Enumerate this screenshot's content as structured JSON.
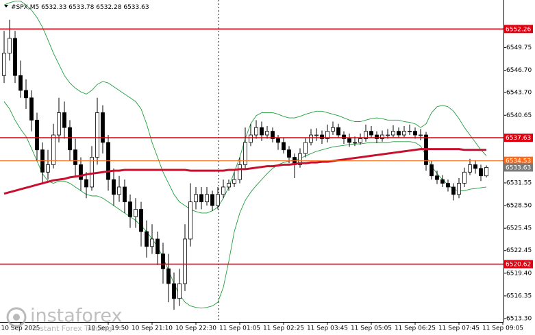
{
  "header": {
    "symbol": "#SPX,M5",
    "ohlc": [
      6532.33,
      6533.78,
      6532.28,
      6533.63
    ]
  },
  "watermark": {
    "brand": "instaforex",
    "tagline": "Instant Forex Trading"
  },
  "chart_data": {
    "type": "candlestick",
    "ylim": [
      6512.84,
      6556.16
    ],
    "yticks": [
      6549.75,
      {
        "value": 6546.7,
        "label": "6546.70"
      },
      {
        "value": 6543.7,
        "label": "6543.70"
      },
      6540.65,
      6531.55,
      {
        "value": 6528.5,
        "label": "6528.50"
      },
      6525.45,
      6522.45,
      {
        "value": 6519.4,
        "label": "6519.40"
      },
      6516.35,
      {
        "value": 6513.3,
        "label": "6513.30"
      }
    ],
    "up_color": "#ffffff",
    "down_color": "#000000",
    "levels": [
      {
        "value": 6552.26,
        "color": "#e00010"
      },
      {
        "value": 6537.63,
        "color": "#e00010"
      },
      {
        "value": 6534.53,
        "color": "#ff6a1a"
      },
      {
        "value": 6520.62,
        "color": "#e00010"
      }
    ],
    "price": {
      "value": 6533.63,
      "color": "#7a7a7a"
    },
    "categories": [
      null,
      null,
      null,
      "10 Sep 2025",
      null,
      null,
      null,
      null,
      null,
      null,
      null,
      null,
      null,
      null,
      null,
      null,
      null,
      null,
      null,
      "10 Sep 19:50",
      null,
      null,
      null,
      null,
      null,
      null,
      null,
      "10 Sep 21:10",
      null,
      null,
      null,
      null,
      null,
      null,
      null,
      "10 Sep 22:30",
      null,
      null,
      null,
      null,
      null,
      null,
      null,
      "11 Sep 01:05",
      null,
      null,
      null,
      null,
      null,
      null,
      null,
      "11 Sep 02:25",
      null,
      null,
      null,
      null,
      null,
      null,
      null,
      "11 Sep 03:45",
      null,
      null,
      null,
      null,
      null,
      null,
      null,
      "11 Sep 05:05",
      null,
      null,
      null,
      null,
      null,
      null,
      null,
      "11 Sep 06:25",
      null,
      null,
      null,
      null,
      null,
      null,
      null,
      "11 Sep 07:45",
      null,
      null,
      null,
      null,
      null,
      null,
      null,
      "11 Sep 09:05"
    ],
    "open": [
      6546,
      6549,
      6551,
      6546,
      6544,
      6543,
      6540,
      6536,
      6533,
      6534,
      6538,
      6541,
      6539,
      6536,
      6534,
      6532,
      6531,
      6535,
      6541,
      6537,
      6532,
      6530,
      6531,
      6529,
      6527,
      6528,
      6525,
      6523,
      6524,
      6522,
      6520,
      6518,
      6516,
      6518,
      6524,
      6529,
      6530,
      6529,
      6530,
      6528.5,
      6530,
      6531,
      6531.5,
      6532,
      6534,
      6537,
      6538,
      6539,
      6538,
      6538.5,
      6537.5,
      6537,
      6536,
      6535,
      6534,
      6535.5,
      6537,
      6538,
      6538,
      6537.5,
      6538.5,
      6539,
      6538,
      6537.5,
      6537,
      6537,
      6537.5,
      6538.5,
      6538,
      6537.5,
      6538,
      6538,
      6538.5,
      6538,
      6538.5,
      6538.5,
      6538,
      6538,
      6534,
      6532.5,
      6532,
      6531.5,
      6531,
      6530,
      6531.5,
      6533,
      6534,
      6533.5,
      6532.5,
      null,
      null,
      null
    ],
    "high": [
      6552,
      6553.5,
      6552,
      6548,
      6545.5,
      6544,
      6541,
      6537,
      6536,
      6539.5,
      6543,
      6542.5,
      6540,
      6537.5,
      6535,
      6533,
      6536.5,
      6543,
      6542,
      6538,
      6533.5,
      6532.5,
      6532,
      6530,
      6529.5,
      6529,
      6526.5,
      6526,
      6525,
      6523.5,
      6522,
      6519.5,
      6520,
      6526,
      6531.5,
      6531,
      6531,
      6531,
      6530.5,
      6531,
      6532,
      6532,
      6533,
      6535,
      6539,
      6539.5,
      6540,
      6539.8,
      6539.2,
      6539,
      6538,
      6537.6,
      6536.5,
      6535.5,
      6536.2,
      6537.6,
      6538.8,
      6538.9,
      6538.6,
      6539.4,
      6539.8,
      6539.5,
      6538.5,
      6538.2,
      6537.8,
      6538.2,
      6539.4,
      6539.2,
      6538.5,
      6538.6,
      6538.8,
      6539.3,
      6539,
      6539.2,
      6539.4,
      6539,
      6538.8,
      6538.4,
      6534.5,
      6533.2,
      6532.6,
      6532,
      6531.5,
      6532.2,
      6533.6,
      6534.8,
      6534.6,
      6534,
      6533.9,
      null,
      null,
      null
    ],
    "low": [
      6545,
      6548,
      6545,
      6543,
      6541.5,
      6538.5,
      6534.5,
      6531.5,
      6532,
      6533.5,
      6537,
      6537.5,
      6534.5,
      6532.5,
      6530.5,
      6529.5,
      6530.5,
      6534,
      6535.5,
      6530.5,
      6528.5,
      6529,
      6527.5,
      6525.5,
      6525.5,
      6523,
      6521.5,
      6522,
      6520.5,
      6518,
      6515.5,
      6514.5,
      6515,
      6517,
      6523,
      6528,
      6528,
      6528.5,
      6527.8,
      6528,
      6529.5,
      6530.5,
      6531,
      6531.5,
      6533.5,
      6536.5,
      6537.5,
      6537.2,
      6537.5,
      6537,
      6536,
      6535.5,
      6534.2,
      6532.2,
      6533.6,
      6535,
      6536.6,
      6537.2,
      6536.8,
      6537,
      6538,
      6537.6,
      6536.8,
      6536.4,
      6536.5,
      6536.7,
      6537.1,
      6537.6,
      6536.9,
      6537.1,
      6537.5,
      6537.7,
      6537.6,
      6537.7,
      6538,
      6537.5,
      6537.3,
      6533.2,
      6532,
      6531.4,
      6531,
      6530.4,
      6529.2,
      6529.5,
      6531,
      6532.6,
      6532.8,
      6531.8,
      6532.28,
      null,
      null,
      null
    ],
    "close": [
      6549,
      6551,
      6546,
      6544,
      6543,
      6540,
      6536,
      6533,
      6534,
      6538,
      6541,
      6539,
      6536,
      6534,
      6532,
      6531,
      6535,
      6541,
      6537,
      6532,
      6530,
      6531,
      6529,
      6527,
      6528,
      6525,
      6523,
      6524,
      6522,
      6520,
      6518,
      6516,
      6518,
      6524,
      6529,
      6530,
      6529,
      6530,
      6528.5,
      6530,
      6531,
      6531.5,
      6532,
      6534,
      6537,
      6538,
      6539,
      6538,
      6538.5,
      6537.5,
      6537,
      6536,
      6535,
      6534,
      6535.5,
      6537,
      6538,
      6538,
      6537.5,
      6538.5,
      6539,
      6538,
      6537.5,
      6537,
      6537,
      6537.5,
      6538.5,
      6538,
      6537.5,
      6538,
      6538,
      6538.5,
      6538,
      6538.5,
      6538.5,
      6538,
      6538,
      6534,
      6532.5,
      6532,
      6531.5,
      6531,
      6530,
      6531.5,
      6533,
      6534,
      6533.5,
      6532.5,
      6533.63,
      null,
      null,
      null
    ],
    "bollinger_upper": {
      "color": "#1f9e3a",
      "values": [
        6555.5,
        6555.8,
        6556,
        6556,
        6555.5,
        6554.8,
        6553.8,
        6552.5,
        6550.8,
        6549,
        6547.5,
        6546,
        6545,
        6544.3,
        6543.8,
        6543.5,
        6544,
        6544.8,
        6545.2,
        6545,
        6544.5,
        6544,
        6543.5,
        6543,
        6542.5,
        6541.5,
        6539.5,
        6537,
        6535,
        6533,
        6531.5,
        6530,
        6529,
        6528.5,
        6528,
        6527.7,
        6527.5,
        6527.5,
        6527.8,
        6528.3,
        6529.5,
        6531,
        6533,
        6535,
        6537.5,
        6539.5,
        6540.6,
        6541,
        6541,
        6541,
        6540.8,
        6540.5,
        6540.3,
        6540.3,
        6540.5,
        6540.8,
        6541,
        6541.2,
        6541.2,
        6541,
        6540.8,
        6540.6,
        6540.3,
        6540,
        6539.8,
        6539.8,
        6540,
        6540.2,
        6540.3,
        6540.2,
        6540,
        6540,
        6540,
        6539.8,
        6539.7,
        6539.5,
        6539,
        6539.5,
        6541,
        6541.8,
        6542,
        6541.8,
        6541.2,
        6540.2,
        6539,
        6538,
        6537,
        6536,
        6535.2,
        null,
        null,
        null
      ]
    },
    "bollinger_lower": {
      "color": "#1f9e3a",
      "values": [
        6542.5,
        6541.5,
        6540,
        6538.8,
        6537.8,
        6536.2,
        6534.5,
        6532.8,
        6531.8,
        6531.5,
        6531.8,
        6531.8,
        6531.5,
        6531,
        6530.5,
        6530,
        6529.8,
        6529.8,
        6529.5,
        6529,
        6528.5,
        6528,
        6527.5,
        6527,
        6526.5,
        6525.8,
        6525,
        6524,
        6523,
        6521.5,
        6519.8,
        6518,
        6516.5,
        6515.5,
        6515,
        6514.8,
        6514.7,
        6514.8,
        6515,
        6515.5,
        6517.5,
        6521,
        6525,
        6527.5,
        6529.2,
        6530.3,
        6531.2,
        6532,
        6532.8,
        6533.5,
        6534,
        6534.3,
        6534.5,
        6534.6,
        6534.8,
        6535.2,
        6535.5,
        6535.8,
        6536,
        6536.2,
        6536.4,
        6536.5,
        6536.6,
        6536.7,
        6536.8,
        6536.8,
        6536.9,
        6537,
        6537,
        6537,
        6537,
        6537.1,
        6537.1,
        6537.1,
        6537.1,
        6537,
        6536.5,
        6535.2,
        6533.8,
        6532.8,
        6532,
        6531.3,
        6530.7,
        6530.5,
        6530.5,
        6530.7,
        6530.8,
        6530.9,
        6531,
        null,
        null,
        null
      ]
    },
    "moving_average": {
      "color": "#c8102e",
      "values": [
        6530.1,
        6530.3,
        6530.5,
        6530.7,
        6530.9,
        6531.1,
        6531.3,
        6531.5,
        6531.7,
        6531.9,
        6532,
        6532.1,
        6532.3,
        6532.4,
        6532.5,
        6532.7,
        6532.8,
        6532.9,
        6533,
        6533.1,
        6533.2,
        6533.2,
        6533.3,
        6533.3,
        6533.3,
        6533.3,
        6533.3,
        6533.3,
        6533.3,
        6533.3,
        6533.3,
        6533.3,
        6533.3,
        6533.3,
        6533.2,
        6533.2,
        6533.2,
        6533.2,
        6533.2,
        6533.2,
        6533.2,
        6533.3,
        6533.3,
        6533.4,
        6533.4,
        6533.5,
        6533.6,
        6533.7,
        6533.8,
        6533.8,
        6533.9,
        6534,
        6534,
        6534.1,
        6534.2,
        6534.2,
        6534.3,
        6534.3,
        6534.4,
        6534.4,
        6534.5,
        6534.6,
        6534.7,
        6534.8,
        6534.9,
        6535,
        6535.1,
        6535.2,
        6535.3,
        6535.4,
        6535.5,
        6535.6,
        6535.7,
        6535.8,
        6535.9,
        6536,
        6536.1,
        6536.1,
        6536.1,
        6536.1,
        6536.1,
        6536.1,
        6536.1,
        6536.1,
        6536,
        6536,
        6536,
        6536,
        6536,
        null,
        null,
        null
      ]
    }
  }
}
